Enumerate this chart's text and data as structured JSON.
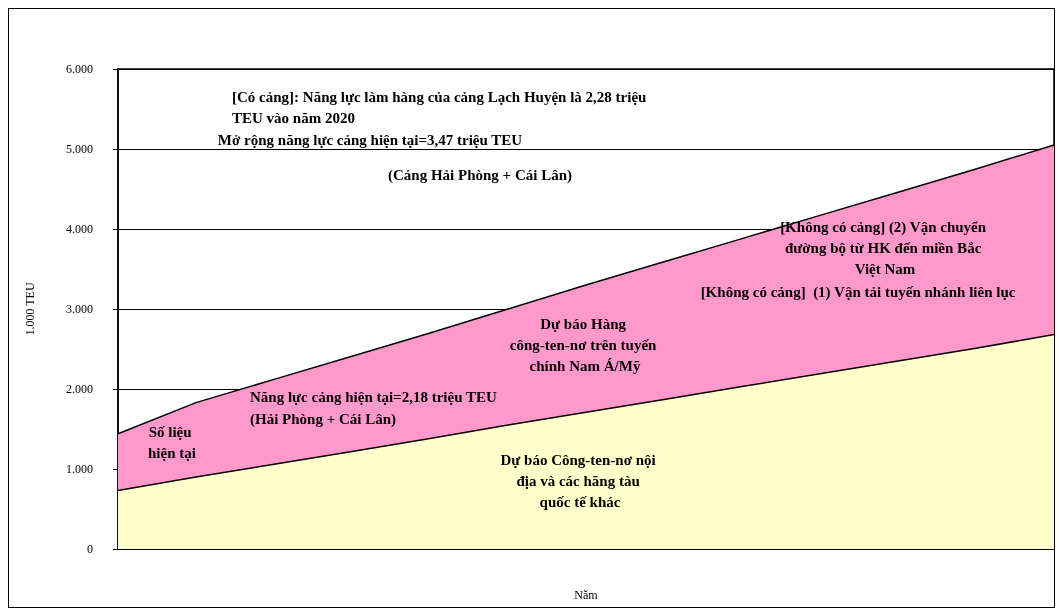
{
  "chart_data": {
    "type": "area",
    "stacked": true,
    "xlabel": "Năm",
    "ylabel": "1.000 TEU",
    "categories": [
      null,
      null,
      null,
      null,
      null,
      null,
      null,
      null,
      null,
      null,
      null,
      null,
      null
    ],
    "series": [
      {
        "color": "#ffffcc",
        "values": [
          730,
          900,
          1060,
          1220,
          1380,
          1550,
          1710,
          1870,
          2030,
          2190,
          2350,
          2510,
          2680
        ]
      },
      {
        "color": "#ff99cc",
        "values": [
          710,
          930,
          1060,
          1190,
          1320,
          1450,
          1590,
          1720,
          1850,
          1980,
          2110,
          2240,
          2370
        ]
      }
    ],
    "ylim": [
      0,
      6000
    ],
    "yticks": [
      0,
      {
        "value": 1000,
        "label": "1.000"
      },
      {
        "value": 2000,
        "label": "2.000"
      },
      {
        "value": 3000,
        "label": "3.000"
      },
      {
        "value": 4000,
        "label": "4.000"
      },
      {
        "value": 5000,
        "label": "5.000"
      },
      {
        "value": 6000,
        "label": "6.000"
      }
    ],
    "grid": "y",
    "annotations": [
      "[Có cảng]: Năng lực làm hàng của cảng Lạch Huyện là 2,28 triệu TEU vào năm 2020",
      "Mở rộng năng lực cảng hiện tại=3,47 triệu TEU",
      "(Cảng Hải Phòng + Cái Lân)",
      "[Không có cảng] (2) Vận chuyển đường bộ từ HK đến miền Bắc Việt Nam",
      "[Không có cảng]  (1) Vận tải tuyến nhánh liên lục",
      "Dự báo Hàng công-ten-nơ trên tuyến chính Nam Á/Mỹ",
      "Năng lực cảng hiện tại=2,18 triệu TEU",
      "(Hải Phòng + Cái Lân)",
      "Số liệu hiện tại",
      "Dự báo Công-ten-nơ nội địa và các hãng tàu quốc tế khác"
    ]
  }
}
